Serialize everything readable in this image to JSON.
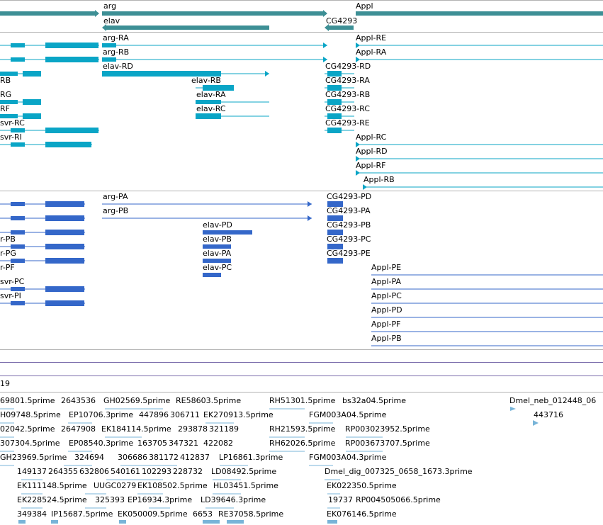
{
  "colors": {
    "gene": "#3d8f95",
    "transcript_rna": "#0aa5c6",
    "transcript_prot": "#3467c9",
    "est": "#78b4d8",
    "separator": "#b3b3b3",
    "track_line": "#7a6cab"
  },
  "genes": {
    "arg": "arg",
    "appl": "Appl",
    "elav": "elav",
    "cg4293": "CG4293"
  },
  "rna_transcripts": [
    "arg-RA",
    "arg-RB",
    "elav-RD",
    "elav-RB",
    "elav-RA",
    "elav-RC",
    "CG4293-RD",
    "CG4293-RA",
    "CG4293-RB",
    "CG4293-RC",
    "CG4293-RE",
    "Appl-RE",
    "Appl-RA",
    "Appl-RC",
    "Appl-RD",
    "Appl-RF",
    "Appl-RB",
    "RB",
    "RG",
    "RF",
    "svr-RC",
    "svr-RI"
  ],
  "protein_transcripts": [
    "arg-PA",
    "arg-PB",
    "elav-PD",
    "elav-PB",
    "elav-PA",
    "elav-PC",
    "CG4293-PD",
    "CG4293-PA",
    "CG4293-PB",
    "CG4293-PC",
    "CG4293-PE",
    "Appl-PE",
    "Appl-PA",
    "Appl-PC",
    "Appl-PD",
    "Appl-PF",
    "Appl-PB",
    "r-PB",
    "r-PG",
    "r-PF",
    "svr-PC",
    "svr-PI"
  ],
  "track_label": "19",
  "est_labels": [
    "69801.5prime",
    "2643536",
    "GH02569.5prime",
    "RE58603.5prime",
    "RH51301.5prime",
    "bs32a04.5prime",
    "Dmel_neb_012448_06",
    "H09748.5prime",
    "EP10706.3prime",
    "447896",
    "306711",
    "EK270913.5prime",
    "FGM003A04.5prime",
    "443716",
    "02042.5prime",
    "2647908",
    "EK184114.5prime",
    "293878",
    "321189",
    "RH21593.5prime",
    "RP003023952.5prime",
    "307304.5prime",
    "EP08540.3prime",
    "163705",
    "347321",
    "422082",
    "RH62026.5prime",
    "RP003673707.5prime",
    "GH23969.5prime",
    "324694",
    "306686",
    "381172",
    "412837",
    "LP16861.3prime",
    "FGM003A04.3prime",
    "149137",
    "264355",
    "632806",
    "540161",
    "102293",
    "228732",
    "LD08492.5prime",
    "Dmel_dig_007325_0658_1673.3prime",
    "EK111148.5prime",
    "UUGC0279",
    "EK108502.5prime",
    "HL03451.5prime",
    "EK022350.5prime",
    "EK228524.5prime",
    "325393",
    "EP16934.3prime",
    "LD39646.3prime",
    "19737",
    "RP004505066.5prime",
    "349384",
    "IP15687.5prime",
    "EK050009.5prime",
    "6653",
    "RE37058.5prime",
    "EK076146.5prime"
  ]
}
